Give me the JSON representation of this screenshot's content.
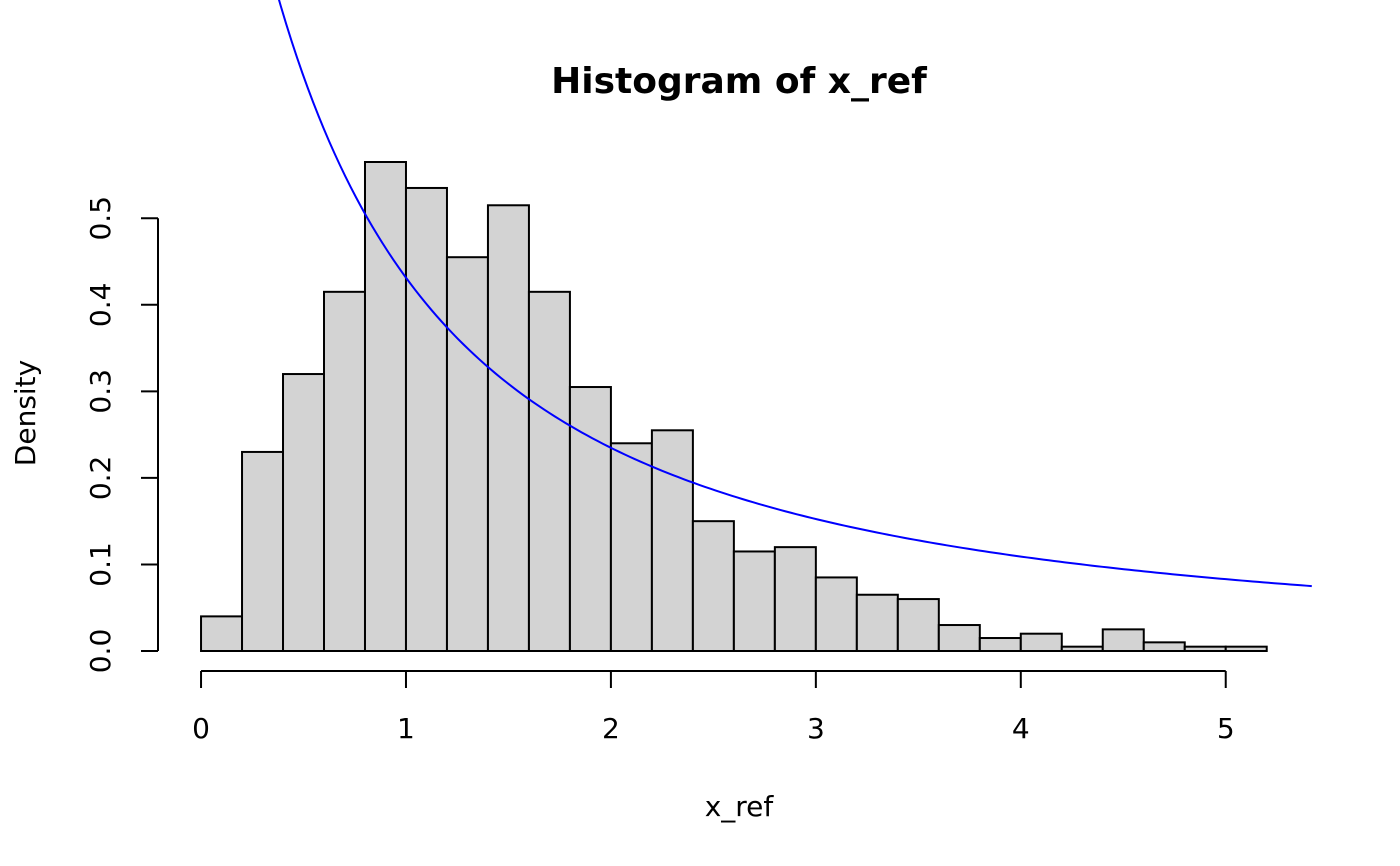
{
  "chart_data": {
    "type": "bar",
    "title": "Histogram of x_ref",
    "xlabel": "x_ref",
    "ylabel": "Density",
    "x_ticks": [
      0,
      1,
      2,
      3,
      4,
      5
    ],
    "y_ticks": [
      0.0,
      0.1,
      0.2,
      0.3,
      0.4,
      0.5
    ],
    "y_tick_labels": [
      "0.0",
      "0.1",
      "0.2",
      "0.3",
      "0.4",
      "0.5"
    ],
    "xlim": [
      -0.21,
      5.46
    ],
    "ylim": [
      0,
      0.565
    ],
    "bin_width": 0.2,
    "bin_edges": [
      0.0,
      0.2,
      0.4,
      0.6,
      0.8,
      1.0,
      1.2,
      1.4,
      1.6,
      1.8,
      2.0,
      2.2,
      2.4,
      2.6,
      2.8,
      3.0,
      3.2,
      3.4,
      3.6,
      3.8,
      4.0,
      4.2,
      4.4,
      4.6,
      4.8,
      5.0,
      5.2
    ],
    "values": [
      0.04,
      0.23,
      0.32,
      0.415,
      0.565,
      0.535,
      0.455,
      0.515,
      0.415,
      0.305,
      0.24,
      0.255,
      0.15,
      0.115,
      0.12,
      0.085,
      0.065,
      0.06,
      0.03,
      0.015,
      0.02,
      0.005,
      0.025,
      0.01,
      0.005,
      0.005
    ],
    "bar_color": "#d3d3d3",
    "bar_edge_color": "#000000",
    "curve": {
      "color": "#0000ff",
      "x_range": [
        0.18,
        5.42
      ],
      "amplitude": 1.22,
      "exponent": -1.5
    }
  }
}
